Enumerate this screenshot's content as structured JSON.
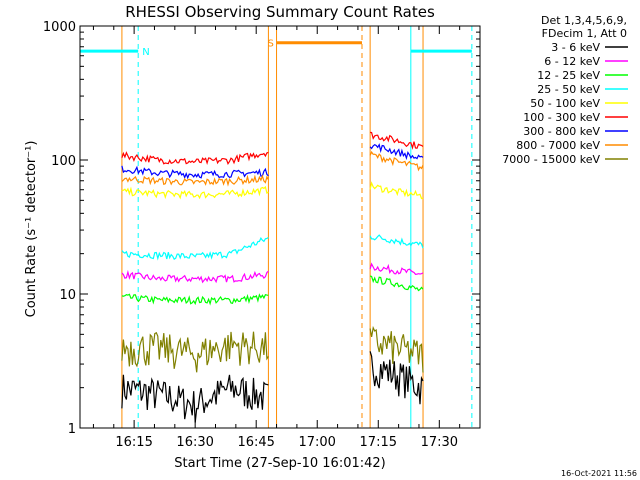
{
  "chart_data": {
    "type": "line",
    "title": "RHESSI Observing Summary Count Rates",
    "xlabel": "Start Time (27-Sep-10 16:01:42)",
    "ylabel": "Count Rate (s⁻¹ detector⁻¹)",
    "yscale": "log",
    "ylim": [
      1,
      1000
    ],
    "xlim": [
      "16:01:42",
      "17:40:00"
    ],
    "x_ticks": [
      "16:15",
      "16:30",
      "16:45",
      "17:00",
      "17:15",
      "17:30"
    ],
    "y_ticks": [
      "1",
      "10",
      "100",
      "1000"
    ],
    "grid": false,
    "legend": {
      "position": "top-right",
      "header": [
        "Det 1,3,4,5,6,9,",
        "FDecim 1, Att 0"
      ]
    },
    "series": [
      {
        "name": "3 - 6 keV",
        "color": "#000000",
        "segments": [
          {
            "start": "16:12",
            "end": "16:48",
            "values": [
              2.0,
              1.8,
              1.5,
              2.0,
              1.7
            ]
          },
          {
            "start": "17:13",
            "end": "17:26",
            "values": [
              3.0,
              2.5,
              2.0
            ]
          }
        ]
      },
      {
        "name": "6 - 12 keV",
        "color": "#ff00ff",
        "segments": [
          {
            "start": "16:12",
            "end": "16:48",
            "values": [
              14,
              13,
              13,
              13,
              14
            ]
          },
          {
            "start": "17:13",
            "end": "17:26",
            "values": [
              16,
              15,
              14
            ]
          }
        ]
      },
      {
        "name": "12 - 25 keV",
        "color": "#00ff00",
        "segments": [
          {
            "start": "16:12",
            "end": "16:48",
            "values": [
              9.5,
              9,
              9,
              9,
              9.5
            ]
          },
          {
            "start": "17:13",
            "end": "17:26",
            "values": [
              13,
              12,
              10.5
            ]
          }
        ]
      },
      {
        "name": "25 - 50 keV",
        "color": "#00ffff",
        "segments": [
          {
            "start": "16:12",
            "end": "16:48",
            "values": [
              20,
              19.5,
              19,
              20,
              26
            ]
          },
          {
            "start": "17:13",
            "end": "17:26",
            "values": [
              27,
              25,
              23
            ]
          }
        ]
      },
      {
        "name": "50 - 100 keV",
        "color": "#ffff00",
        "segments": [
          {
            "start": "16:12",
            "end": "16:48",
            "values": [
              58,
              56,
              55,
              56,
              60
            ]
          },
          {
            "start": "17:13",
            "end": "17:26",
            "values": [
              64,
              58,
              54
            ]
          }
        ]
      },
      {
        "name": "100 - 300 keV",
        "color": "#ff0000",
        "segments": [
          {
            "start": "16:12",
            "end": "16:48",
            "values": [
              108,
              100,
              97,
              100,
              115
            ]
          },
          {
            "start": "17:13",
            "end": "17:26",
            "values": [
              155,
              140,
              125
            ]
          }
        ]
      },
      {
        "name": "300 - 800 keV",
        "color": "#0000ff",
        "segments": [
          {
            "start": "16:12",
            "end": "16:48",
            "values": [
              86,
              80,
              78,
              79,
              81
            ]
          },
          {
            "start": "17:13",
            "end": "17:26",
            "values": [
              130,
              115,
              100
            ]
          }
        ]
      },
      {
        "name": "800 - 7000 keV",
        "color": "#ff8c00",
        "segments": [
          {
            "start": "16:12",
            "end": "16:48",
            "values": [
              73,
              70,
              68,
              70,
              72
            ]
          },
          {
            "start": "17:13",
            "end": "17:26",
            "values": [
              110,
              97,
              87
            ]
          }
        ]
      },
      {
        "name": "7000 - 15000 keV",
        "color": "#808000",
        "segments": [
          {
            "start": "16:12",
            "end": "16:48",
            "values": [
              4.0,
              4.0,
              3.6,
              4.2,
              4.0
            ]
          },
          {
            "start": "17:13",
            "end": "17:26",
            "values": [
              4.5,
              4.0,
              3.5
            ]
          }
        ]
      }
    ],
    "annotations": {
      "night_bars": [
        {
          "label": "",
          "start": "16:01:42",
          "end": "16:16",
          "color": "#00ffff",
          "y": 650,
          "value_label": "N"
        },
        {
          "label": "",
          "start": "17:23",
          "end": "17:38",
          "color": "#00ffff",
          "y": 650,
          "value_label": ""
        },
        {
          "label": "",
          "start": "16:50",
          "end": "17:11",
          "color": "#ff8c00",
          "y": 750,
          "value_label": "S"
        }
      ],
      "vertical_lines": [
        {
          "time": "16:01:42",
          "color": "#00ffff",
          "style": "solid"
        },
        {
          "time": "16:16",
          "color": "#00ffff",
          "style": "dashed"
        },
        {
          "time": "17:23",
          "color": "#00ffff",
          "style": "solid"
        },
        {
          "time": "17:38",
          "color": "#00ffff",
          "style": "dashed"
        },
        {
          "time": "16:12",
          "color": "#ff8c00",
          "style": "solid"
        },
        {
          "time": "16:48",
          "color": "#ff8c00",
          "style": "solid"
        },
        {
          "time": "16:50",
          "color": "#ff8c00",
          "style": "solid"
        },
        {
          "time": "17:11",
          "color": "#ff8c00",
          "style": "dashed"
        },
        {
          "time": "17:13",
          "color": "#ff8c00",
          "style": "solid"
        },
        {
          "time": "17:26",
          "color": "#ff8c00",
          "style": "solid"
        }
      ]
    },
    "footer_timestamp": "16-Oct-2021 11:56"
  }
}
